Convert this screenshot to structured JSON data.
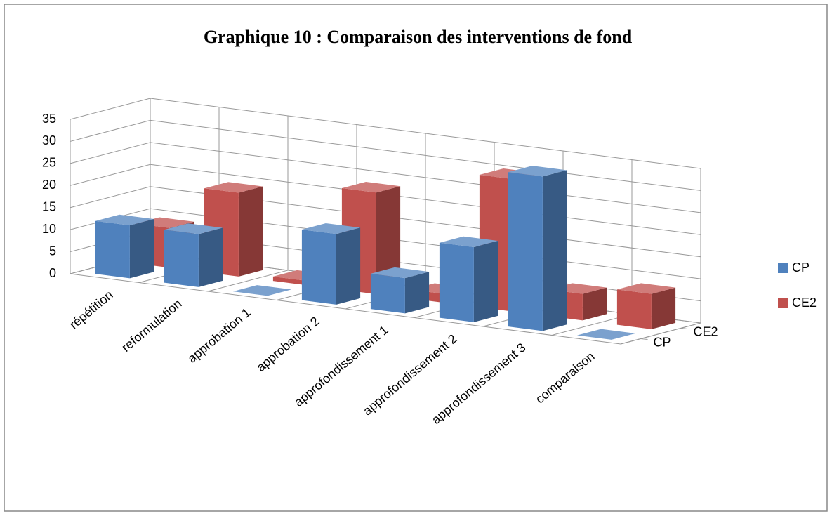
{
  "chart_data": {
    "type": "bar3d",
    "title": "Graphique 10 : Comparaison des interventions de fond",
    "categories": [
      "répétition",
      "reformulation",
      "approbation 1",
      "approbation 2",
      "approfondissement 1",
      "approfondissement 2",
      "approfondissement 3",
      "comparaison"
    ],
    "series": [
      {
        "name": "CP",
        "color": "#4f81bd",
        "values": [
          12,
          12,
          0,
          16,
          8,
          17,
          35,
          0
        ]
      },
      {
        "name": "CE2",
        "color": "#c0504d",
        "values": [
          9,
          19,
          1,
          23,
          2,
          30,
          6,
          8
        ]
      }
    ],
    "ylim": [
      0,
      35
    ],
    "yticks": [
      0,
      5,
      10,
      15,
      20,
      25,
      30,
      35
    ],
    "grid": true,
    "legend": "right"
  }
}
